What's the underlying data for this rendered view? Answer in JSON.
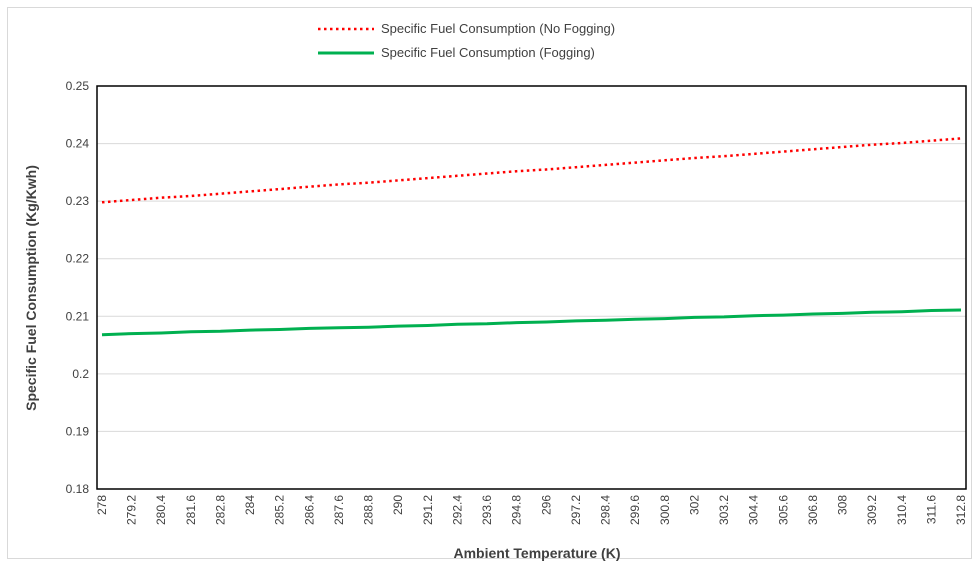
{
  "chart_data": {
    "type": "line",
    "title": "",
    "xlabel": "Ambient Temperature (K)",
    "ylabel": "Specific Fuel Consumption (Kg/Kwh)",
    "ylim": [
      0.18,
      0.25
    ],
    "yticks": [
      "0.18",
      "0.19",
      "0.2",
      "0.21",
      "0.22",
      "0.23",
      "0.24",
      "0.25"
    ],
    "x": [
      "278",
      "279.2",
      "280.4",
      "281.6",
      "282.8",
      "284",
      "285.2",
      "286.4",
      "287.6",
      "288.8",
      "290",
      "291.2",
      "292.4",
      "293.6",
      "294.8",
      "296",
      "297.2",
      "298.4",
      "299.6",
      "300.8",
      "302",
      "303.2",
      "304.4",
      "305.6",
      "306.8",
      "308",
      "309.2",
      "310.4",
      "311.6",
      "312.8"
    ],
    "grid": true,
    "legend_position": "top-center",
    "series": [
      {
        "name": "Specific Fuel Consumption (No Fogging)",
        "color": "#ff0000",
        "style": "dotted",
        "values": [
          0.2298,
          0.2302,
          0.2306,
          0.2309,
          0.2313,
          0.2317,
          0.2321,
          0.2325,
          0.2329,
          0.2332,
          0.2336,
          0.234,
          0.2344,
          0.2348,
          0.2352,
          0.2355,
          0.2359,
          0.2363,
          0.2367,
          0.2371,
          0.2375,
          0.2378,
          0.2382,
          0.2386,
          0.239,
          0.2394,
          0.2398,
          0.2401,
          0.2405,
          0.2409
        ]
      },
      {
        "name": "Specific Fuel Consumption (Fogging)",
        "color": "#00b050",
        "style": "solid",
        "values": [
          0.2068,
          0.207,
          0.2071,
          0.2073,
          0.2074,
          0.2076,
          0.2077,
          0.2079,
          0.208,
          0.2081,
          0.2083,
          0.2084,
          0.2086,
          0.2087,
          0.2089,
          0.209,
          0.2092,
          0.2093,
          0.2095,
          0.2096,
          0.2098,
          0.2099,
          0.2101,
          0.2102,
          0.2104,
          0.2105,
          0.2107,
          0.2108,
          0.211,
          0.2111
        ]
      }
    ]
  }
}
